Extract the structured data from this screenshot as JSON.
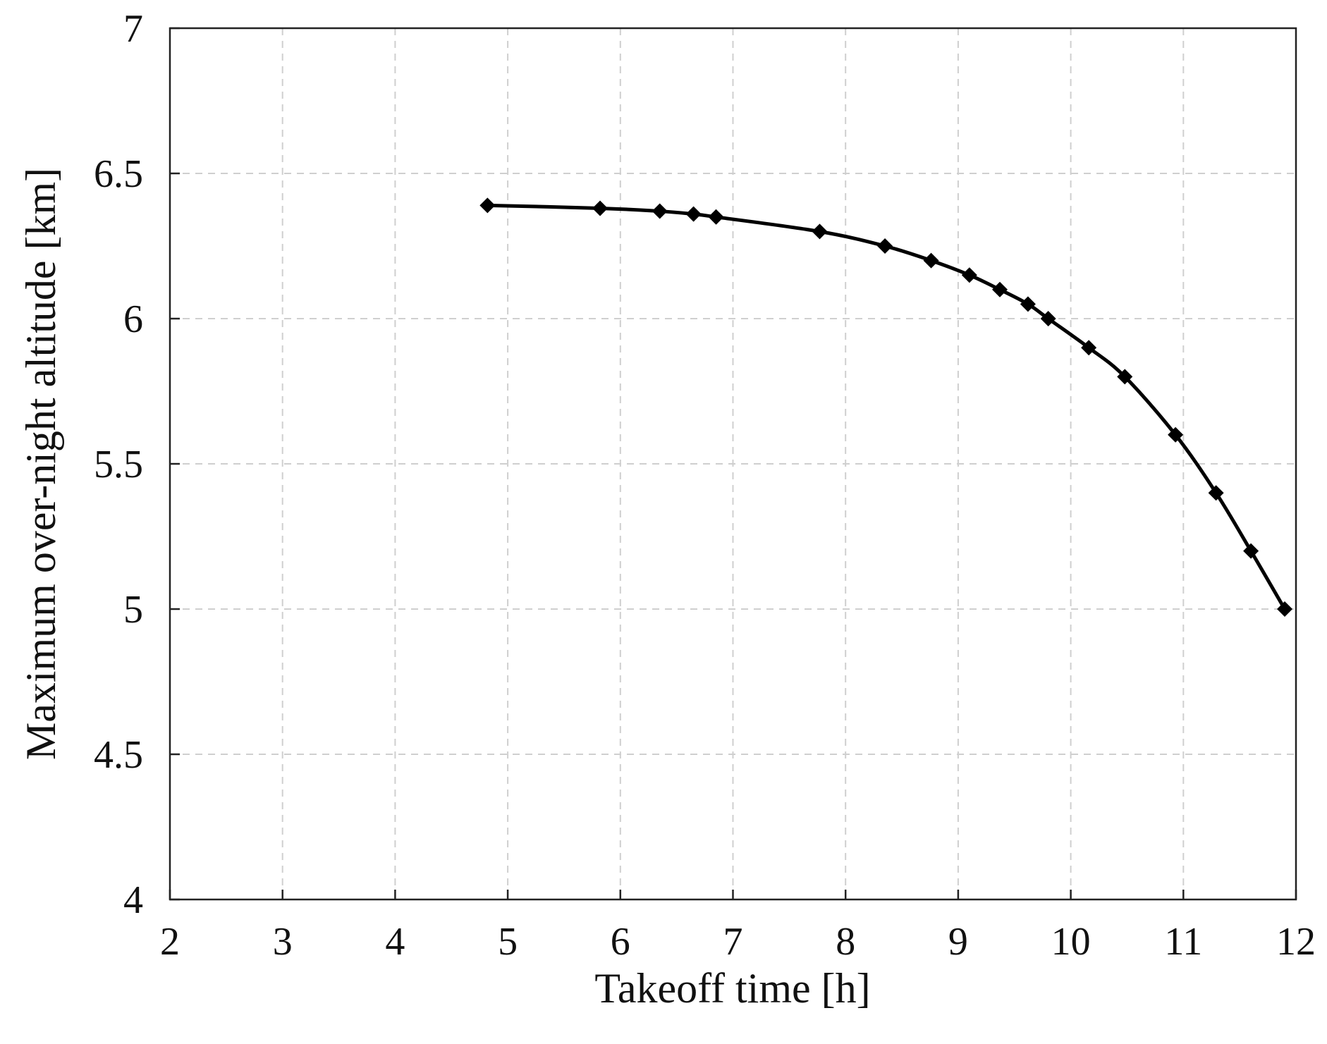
{
  "chart_data": {
    "type": "line",
    "title": "",
    "xlabel": "Takeoff time [h]",
    "ylabel": "Maximum over-night altitude [km]",
    "xlim": [
      2,
      12
    ],
    "ylim": [
      4,
      7
    ],
    "xticks": [
      2,
      3,
      4,
      5,
      6,
      7,
      8,
      9,
      10,
      11,
      12
    ],
    "yticks": [
      4,
      4.5,
      5,
      5.5,
      6,
      6.5,
      7
    ],
    "xtick_labels": [
      "2",
      "3",
      "4",
      "5",
      "6",
      "7",
      "8",
      "9",
      "10",
      "11",
      "12"
    ],
    "ytick_labels": [
      "4",
      "4.5",
      "5",
      "5.5",
      "6",
      "6.5",
      "7"
    ],
    "grid": true,
    "marker": "diamond",
    "color": "#000000",
    "series": [
      {
        "x": [
          4.82,
          5.82,
          6.35,
          6.65,
          6.85,
          7.77,
          8.35,
          8.76,
          9.1,
          9.37,
          9.62,
          9.8,
          10.16,
          10.48,
          10.93,
          11.29,
          11.6,
          11.9
        ],
        "y": [
          6.39,
          6.38,
          6.37,
          6.36,
          6.35,
          6.3,
          6.25,
          6.2,
          6.15,
          6.1,
          6.05,
          6.0,
          5.9,
          5.8,
          5.6,
          5.4,
          5.2,
          5.0
        ]
      }
    ]
  }
}
